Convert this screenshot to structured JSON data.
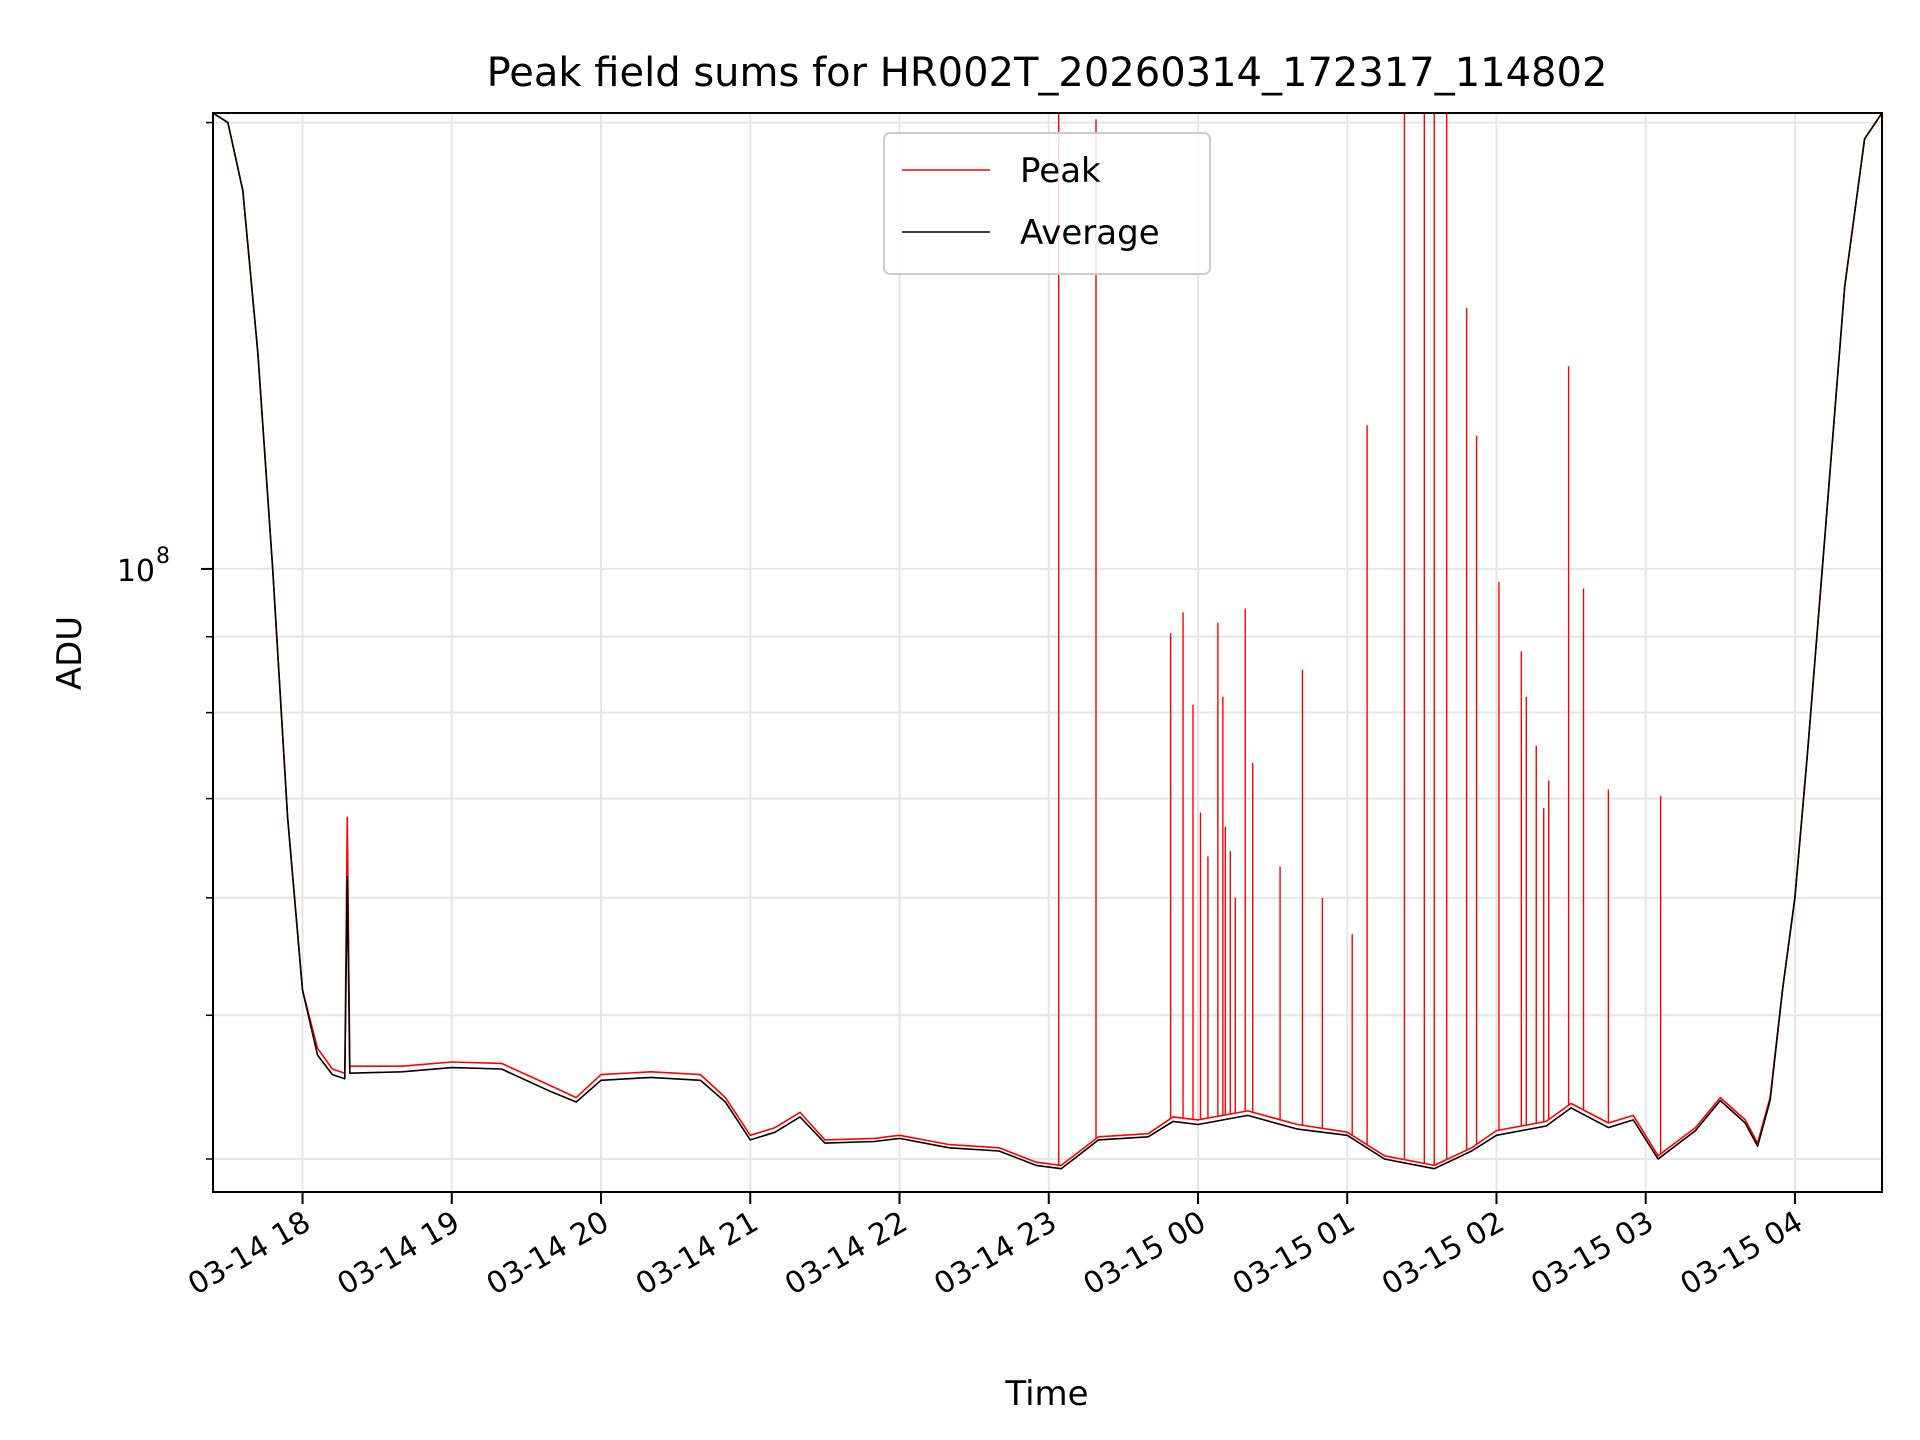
{
  "chart_data": {
    "type": "line",
    "title": "Peak field sums for HR002T_20260314_172317_114802",
    "xlabel": "Time",
    "ylabel": "ADU",
    "yscale": "log",
    "xlim": [
      "2026-03-14 17:24",
      "2026-03-15 04:35"
    ],
    "ylim": [
      38000000,
      203000000
    ],
    "grid": true,
    "legend_position": "upper center",
    "x_ticks": [
      "03-14 18",
      "03-14 19",
      "03-14 20",
      "03-14 21",
      "03-14 22",
      "03-14 23",
      "03-15 00",
      "03-15 01",
      "03-15 02",
      "03-15 03",
      "03-15 04"
    ],
    "y_tick_labels": [
      {
        "base": "10",
        "exponent": "8",
        "value": 100000000
      }
    ],
    "series": [
      {
        "name": "Peak",
        "color": "#ff0000",
        "points": [
          [
            "2026-03-14 17:24",
            203000000
          ],
          [
            "2026-03-14 17:30",
            200000000
          ],
          [
            "2026-03-14 17:36",
            180000000
          ],
          [
            "2026-03-14 17:42",
            140000000
          ],
          [
            "2026-03-14 17:48",
            100000000
          ],
          [
            "2026-03-14 17:54",
            68000000
          ],
          [
            "2026-03-14 18:00",
            52000000
          ],
          [
            "2026-03-14 18:06",
            47500000
          ],
          [
            "2026-03-14 18:12",
            46000000
          ],
          [
            "2026-03-14 18:17",
            45700000
          ],
          [
            "2026-03-14 18:18",
            68000000
          ],
          [
            "2026-03-14 18:19",
            46200000
          ],
          [
            "2026-03-14 18:40",
            46200000
          ],
          [
            "2026-03-14 19:00",
            46500000
          ],
          [
            "2026-03-14 19:20",
            46400000
          ],
          [
            "2026-03-14 19:40",
            44800000
          ],
          [
            "2026-03-14 19:50",
            44000000
          ],
          [
            "2026-03-14 20:00",
            45600000
          ],
          [
            "2026-03-14 20:20",
            45800000
          ],
          [
            "2026-03-14 20:40",
            45600000
          ],
          [
            "2026-03-14 20:50",
            44000000
          ],
          [
            "2026-03-14 21:00",
            41500000
          ],
          [
            "2026-03-14 21:10",
            42000000
          ],
          [
            "2026-03-14 21:20",
            43000000
          ],
          [
            "2026-03-14 21:30",
            41200000
          ],
          [
            "2026-03-14 21:50",
            41300000
          ],
          [
            "2026-03-14 22:00",
            41500000
          ],
          [
            "2026-03-14 22:20",
            40900000
          ],
          [
            "2026-03-14 22:40",
            40700000
          ],
          [
            "2026-03-14 22:55",
            39800000
          ],
          [
            "2026-03-14 23:05",
            39600000
          ],
          [
            "2026-03-14 23:20",
            41400000
          ],
          [
            "2026-03-14 23:40",
            41600000
          ],
          [
            "2026-03-14 23:50",
            42700000
          ],
          [
            "2026-03-15 00:00",
            42500000
          ],
          [
            "2026-03-15 00:20",
            43100000
          ],
          [
            "2026-03-15 00:40",
            42200000
          ],
          [
            "2026-03-15 01:00",
            41700000
          ],
          [
            "2026-03-15 01:15",
            40200000
          ],
          [
            "2026-03-15 01:35",
            39600000
          ],
          [
            "2026-03-15 01:50",
            40700000
          ],
          [
            "2026-03-15 02:00",
            41800000
          ],
          [
            "2026-03-15 02:20",
            42400000
          ],
          [
            "2026-03-15 02:30",
            43600000
          ],
          [
            "2026-03-15 02:45",
            42300000
          ],
          [
            "2026-03-15 02:55",
            42800000
          ],
          [
            "2026-03-15 03:05",
            40200000
          ],
          [
            "2026-03-15 03:20",
            42000000
          ],
          [
            "2026-03-15 03:30",
            44000000
          ],
          [
            "2026-03-15 03:40",
            42500000
          ],
          [
            "2026-03-15 03:45",
            41000000
          ],
          [
            "2026-03-15 03:50",
            44000000
          ],
          [
            "2026-03-15 03:55",
            52000000
          ],
          [
            "2026-03-15 04:00",
            60000000
          ],
          [
            "2026-03-15 04:05",
            75000000
          ],
          [
            "2026-03-15 04:12",
            105000000
          ],
          [
            "2026-03-15 04:20",
            155000000
          ],
          [
            "2026-03-15 04:28",
            195000000
          ],
          [
            "2026-03-15 04:35",
            203000000
          ]
        ],
        "spikes": [
          [
            "2026-03-14 23:04",
            203000000
          ],
          [
            "2026-03-14 23:19",
            201000000
          ],
          [
            "2026-03-14 23:49",
            90500000
          ],
          [
            "2026-03-14 23:54",
            93500000
          ],
          [
            "2026-03-14 23:58",
            81000000
          ],
          [
            "2026-03-15 00:01",
            68500000
          ],
          [
            "2026-03-15 00:04",
            64000000
          ],
          [
            "2026-03-15 00:08",
            92000000
          ],
          [
            "2026-03-15 00:10",
            82000000
          ],
          [
            "2026-03-15 00:11",
            67000000
          ],
          [
            "2026-03-15 00:13",
            64500000
          ],
          [
            "2026-03-15 00:15",
            60000000
          ],
          [
            "2026-03-15 00:19",
            94000000
          ],
          [
            "2026-03-15 00:22",
            74000000
          ],
          [
            "2026-03-15 00:33",
            63000000
          ],
          [
            "2026-03-15 00:42",
            85500000
          ],
          [
            "2026-03-15 00:50",
            60000000
          ],
          [
            "2026-03-15 01:02",
            56700000
          ],
          [
            "2026-03-15 01:08",
            125000000
          ],
          [
            "2026-03-15 01:23",
            203000000
          ],
          [
            "2026-03-15 01:31",
            203000000
          ],
          [
            "2026-03-15 01:35",
            203000000
          ],
          [
            "2026-03-15 01:40",
            203000000
          ],
          [
            "2026-03-15 01:48",
            150000000
          ],
          [
            "2026-03-15 01:52",
            123000000
          ],
          [
            "2026-03-15 02:01",
            98000000
          ],
          [
            "2026-03-15 02:10",
            88000000
          ],
          [
            "2026-03-15 02:12",
            82000000
          ],
          [
            "2026-03-15 02:16",
            76000000
          ],
          [
            "2026-03-15 02:19",
            69000000
          ],
          [
            "2026-03-15 02:21",
            72000000
          ],
          [
            "2026-03-15 02:29",
            137000000
          ],
          [
            "2026-03-15 02:35",
            97000000
          ],
          [
            "2026-03-15 02:45",
            71000000
          ],
          [
            "2026-03-15 03:06",
            70300000
          ]
        ]
      },
      {
        "name": "Average",
        "color": "#000000",
        "points": [
          [
            "2026-03-14 17:24",
            203000000
          ],
          [
            "2026-03-14 17:30",
            200000000
          ],
          [
            "2026-03-14 17:36",
            180000000
          ],
          [
            "2026-03-14 17:42",
            140000000
          ],
          [
            "2026-03-14 17:48",
            100000000
          ],
          [
            "2026-03-14 17:54",
            68000000
          ],
          [
            "2026-03-14 18:00",
            52000000
          ],
          [
            "2026-03-14 18:06",
            47000000
          ],
          [
            "2026-03-14 18:12",
            45600000
          ],
          [
            "2026-03-14 18:17",
            45300000
          ],
          [
            "2026-03-14 18:18",
            62000000
          ],
          [
            "2026-03-14 18:19",
            45700000
          ],
          [
            "2026-03-14 18:40",
            45800000
          ],
          [
            "2026-03-14 19:00",
            46100000
          ],
          [
            "2026-03-14 19:20",
            46000000
          ],
          [
            "2026-03-14 19:40",
            44400000
          ],
          [
            "2026-03-14 19:50",
            43700000
          ],
          [
            "2026-03-14 20:00",
            45200000
          ],
          [
            "2026-03-14 20:20",
            45400000
          ],
          [
            "2026-03-14 20:40",
            45200000
          ],
          [
            "2026-03-14 20:50",
            43700000
          ],
          [
            "2026-03-14 21:00",
            41200000
          ],
          [
            "2026-03-14 21:10",
            41700000
          ],
          [
            "2026-03-14 21:20",
            42700000
          ],
          [
            "2026-03-14 21:30",
            41000000
          ],
          [
            "2026-03-14 21:50",
            41100000
          ],
          [
            "2026-03-14 22:00",
            41300000
          ],
          [
            "2026-03-14 22:20",
            40700000
          ],
          [
            "2026-03-14 22:40",
            40500000
          ],
          [
            "2026-03-14 22:55",
            39600000
          ],
          [
            "2026-03-14 23:05",
            39400000
          ],
          [
            "2026-03-14 23:20",
            41200000
          ],
          [
            "2026-03-14 23:40",
            41400000
          ],
          [
            "2026-03-14 23:50",
            42400000
          ],
          [
            "2026-03-15 00:00",
            42200000
          ],
          [
            "2026-03-15 00:20",
            42800000
          ],
          [
            "2026-03-15 00:40",
            41900000
          ],
          [
            "2026-03-15 01:00",
            41500000
          ],
          [
            "2026-03-15 01:15",
            40000000
          ],
          [
            "2026-03-15 01:35",
            39400000
          ],
          [
            "2026-03-15 01:50",
            40500000
          ],
          [
            "2026-03-15 02:00",
            41500000
          ],
          [
            "2026-03-15 02:20",
            42100000
          ],
          [
            "2026-03-15 02:30",
            43300000
          ],
          [
            "2026-03-15 02:45",
            42000000
          ],
          [
            "2026-03-15 02:55",
            42500000
          ],
          [
            "2026-03-15 03:05",
            40000000
          ],
          [
            "2026-03-15 03:20",
            41800000
          ],
          [
            "2026-03-15 03:30",
            43800000
          ],
          [
            "2026-03-15 03:40",
            42300000
          ],
          [
            "2026-03-15 03:45",
            40800000
          ],
          [
            "2026-03-15 03:50",
            43800000
          ],
          [
            "2026-03-15 03:55",
            52000000
          ],
          [
            "2026-03-15 04:00",
            60000000
          ],
          [
            "2026-03-15 04:05",
            75000000
          ],
          [
            "2026-03-15 04:12",
            105000000
          ],
          [
            "2026-03-15 04:20",
            155000000
          ],
          [
            "2026-03-15 04:28",
            195000000
          ],
          [
            "2026-03-15 04:35",
            203000000
          ]
        ]
      }
    ]
  }
}
